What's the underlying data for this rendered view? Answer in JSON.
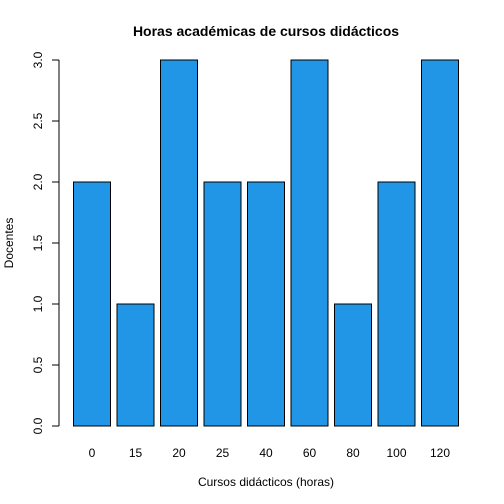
{
  "chart_data": {
    "type": "bar",
    "title": "Horas académicas de cursos didácticos",
    "xlabel": "Cursos didácticos (horas)",
    "ylabel": "Docentes",
    "categories": [
      "0",
      "15",
      "20",
      "25",
      "40",
      "60",
      "80",
      "100",
      "120"
    ],
    "values": [
      2,
      1,
      3,
      2,
      2,
      3,
      1,
      2,
      3
    ],
    "ylim": [
      0,
      3
    ],
    "yticks": [
      "0.0",
      "0.5",
      "1.0",
      "1.5",
      "2.0",
      "2.5",
      "3.0"
    ],
    "bar_color": "#2196E6",
    "grid": false
  }
}
